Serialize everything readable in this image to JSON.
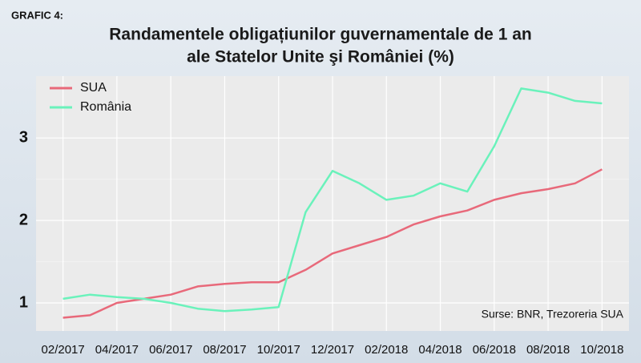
{
  "chart_data": {
    "type": "line",
    "label": "GRAFIC 4:",
    "title": [
      "Randamentele obligațiunilor guvernamentale de 1 an",
      "ale Statelor Unite şi României (%)"
    ],
    "source": "Surse: BNR, Trezoreria SUA",
    "x": [
      "02/2017",
      "03/2017",
      "04/2017",
      "05/2017",
      "06/2017",
      "07/2017",
      "08/2017",
      "09/2017",
      "10/2017",
      "11/2017",
      "12/2017",
      "01/2018",
      "02/2018",
      "03/2018",
      "04/2018",
      "05/2018",
      "06/2018",
      "07/2018",
      "08/2018",
      "09/2018",
      "10/2018"
    ],
    "series": [
      {
        "name": "SUA",
        "color": "#e8697a",
        "values": [
          0.82,
          0.85,
          1.0,
          1.05,
          1.1,
          1.2,
          1.23,
          1.25,
          1.25,
          1.4,
          1.6,
          1.7,
          1.8,
          1.95,
          2.05,
          2.12,
          2.25,
          2.33,
          2.38,
          2.45,
          2.62
        ]
      },
      {
        "name": "România",
        "color": "#6af2bb",
        "values": [
          1.05,
          1.1,
          1.07,
          1.05,
          1.0,
          0.93,
          0.9,
          0.92,
          0.95,
          2.1,
          2.6,
          2.45,
          2.25,
          2.3,
          2.45,
          2.35,
          2.9,
          3.6,
          3.55,
          3.45,
          3.42
        ]
      }
    ],
    "xlim": [
      "01/2017",
      "11/2018"
    ],
    "xticks": [
      "02/2017",
      "04/2017",
      "06/2017",
      "08/2017",
      "10/2017",
      "12/2017",
      "02/2018",
      "04/2018",
      "06/2018",
      "08/2018",
      "10/2018"
    ],
    "ylim": [
      0.66,
      3.75
    ],
    "yticks": [
      1,
      2,
      3
    ],
    "grid": true,
    "legend": "top-left"
  }
}
